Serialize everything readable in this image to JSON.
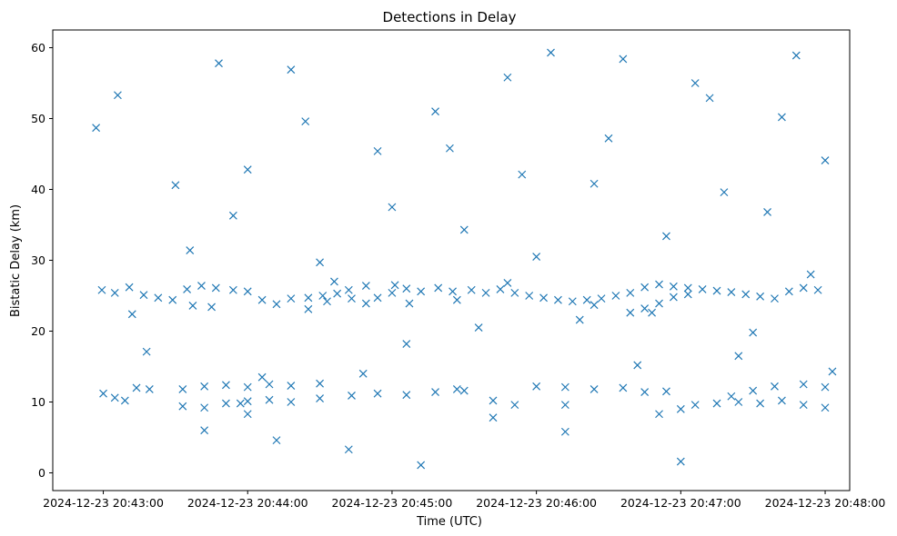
{
  "chart_data": {
    "type": "scatter",
    "title": "Detections in Delay",
    "xlabel": "Time (UTC)",
    "ylabel": "Bistatic Delay (km)",
    "xlim": [
      -0.35,
      5.17
    ],
    "ylim": [
      -2.5,
      62.5
    ],
    "x_unit": "minutes after 2024-12-23 20:43:00",
    "xticks": [
      0,
      1,
      2,
      3,
      4,
      5
    ],
    "xtick_labels": [
      "2024-12-23 20:43:00",
      "2024-12-23 20:44:00",
      "2024-12-23 20:45:00",
      "2024-12-23 20:46:00",
      "2024-12-23 20:47:00",
      "2024-12-23 20:48:00"
    ],
    "yticks": [
      0,
      10,
      20,
      30,
      40,
      50,
      60
    ],
    "ytick_labels": [
      "0",
      "10",
      "20",
      "30",
      "40",
      "50",
      "60"
    ],
    "marker": "x",
    "color": "#1f77b4",
    "grid": false,
    "series": [
      {
        "name": "Detections",
        "points": [
          [
            -0.01,
            25.8
          ],
          [
            0.08,
            25.4
          ],
          [
            0.18,
            26.2
          ],
          [
            0.28,
            25.1
          ],
          [
            0.38,
            24.7
          ],
          [
            0.48,
            24.4
          ],
          [
            0.58,
            25.9
          ],
          [
            0.68,
            26.4
          ],
          [
            0.78,
            26.1
          ],
          [
            0.9,
            25.8
          ],
          [
            1.0,
            25.6
          ],
          [
            1.1,
            24.4
          ],
          [
            1.2,
            23.8
          ],
          [
            1.3,
            24.6
          ],
          [
            1.42,
            24.7
          ],
          [
            1.52,
            25.0
          ],
          [
            1.62,
            25.3
          ],
          [
            1.72,
            24.6
          ],
          [
            1.82,
            23.9
          ],
          [
            1.9,
            24.7
          ],
          [
            2.0,
            25.4
          ],
          [
            2.1,
            26.0
          ],
          [
            2.2,
            25.6
          ],
          [
            2.32,
            26.1
          ],
          [
            2.42,
            25.6
          ],
          [
            2.55,
            25.8
          ],
          [
            2.65,
            25.4
          ],
          [
            2.75,
            25.9
          ],
          [
            2.85,
            25.4
          ],
          [
            2.95,
            25.0
          ],
          [
            3.05,
            24.7
          ],
          [
            3.15,
            24.4
          ],
          [
            3.25,
            24.2
          ],
          [
            3.35,
            24.4
          ],
          [
            3.45,
            24.6
          ],
          [
            3.55,
            25.0
          ],
          [
            3.65,
            25.4
          ],
          [
            3.75,
            26.2
          ],
          [
            3.85,
            26.6
          ],
          [
            3.95,
            26.3
          ],
          [
            4.05,
            26.1
          ],
          [
            4.15,
            25.9
          ],
          [
            4.25,
            25.7
          ],
          [
            4.35,
            25.5
          ],
          [
            4.45,
            25.2
          ],
          [
            4.55,
            24.9
          ],
          [
            4.65,
            24.6
          ],
          [
            4.75,
            25.6
          ],
          [
            4.85,
            26.1
          ],
          [
            4.95,
            25.8
          ],
          [
            1.42,
            23.1
          ],
          [
            1.55,
            24.2
          ],
          [
            1.7,
            25.8
          ],
          [
            1.82,
            26.4
          ],
          [
            2.02,
            26.5
          ],
          [
            3.65,
            22.6
          ],
          [
            3.75,
            23.2
          ],
          [
            3.85,
            23.9
          ],
          [
            3.95,
            24.8
          ],
          [
            4.05,
            25.2
          ],
          [
            2.12,
            23.9
          ],
          [
            2.45,
            24.4
          ],
          [
            2.8,
            26.8
          ],
          [
            3.4,
            23.7
          ],
          [
            0.62,
            23.6
          ],
          [
            0.75,
            23.4
          ],
          [
            0.55,
            9.4
          ],
          [
            0.7,
            9.2
          ],
          [
            0.85,
            9.8
          ],
          [
            1.0,
            10.1
          ],
          [
            1.15,
            10.3
          ],
          [
            1.3,
            10.0
          ],
          [
            1.5,
            10.5
          ],
          [
            1.72,
            10.9
          ],
          [
            1.9,
            11.2
          ],
          [
            2.1,
            11.0
          ],
          [
            2.3,
            11.4
          ],
          [
            2.5,
            11.6
          ],
          [
            2.7,
            10.2
          ],
          [
            2.85,
            9.6
          ],
          [
            3.0,
            12.2
          ],
          [
            3.2,
            12.1
          ],
          [
            3.4,
            11.8
          ],
          [
            3.6,
            12.0
          ],
          [
            3.75,
            11.4
          ],
          [
            3.85,
            8.3
          ],
          [
            4.0,
            9.0
          ],
          [
            4.1,
            9.6
          ],
          [
            4.25,
            9.8
          ],
          [
            4.4,
            10.0
          ],
          [
            4.55,
            9.8
          ],
          [
            4.7,
            10.2
          ],
          [
            4.85,
            9.6
          ],
          [
            5.0,
            9.2
          ],
          [
            3.2,
            9.6
          ],
          [
            2.45,
            11.8
          ],
          [
            0.55,
            11.8
          ],
          [
            0.7,
            12.2
          ],
          [
            0.85,
            12.4
          ],
          [
            1.0,
            12.1
          ],
          [
            1.15,
            12.5
          ],
          [
            1.3,
            12.3
          ],
          [
            4.35,
            10.8
          ],
          [
            4.5,
            11.6
          ],
          [
            4.65,
            12.2
          ],
          [
            4.85,
            12.5
          ],
          [
            5.0,
            12.1
          ],
          [
            0.0,
            11.2
          ],
          [
            0.08,
            10.6
          ],
          [
            0.15,
            10.2
          ],
          [
            0.23,
            12.0
          ],
          [
            0.32,
            11.8
          ],
          [
            3.9,
            11.5
          ],
          [
            1.0,
            8.3
          ],
          [
            1.5,
            12.6
          ],
          [
            0.95,
            9.8
          ],
          [
            -0.05,
            48.7
          ],
          [
            0.2,
            22.4
          ],
          [
            0.5,
            40.6
          ],
          [
            0.7,
            6.0
          ],
          [
            0.9,
            36.3
          ],
          [
            1.1,
            13.5
          ],
          [
            1.3,
            56.9
          ],
          [
            1.5,
            29.7
          ],
          [
            1.7,
            3.3
          ],
          [
            1.9,
            45.4
          ],
          [
            2.1,
            18.2
          ],
          [
            2.3,
            51.0
          ],
          [
            2.5,
            34.3
          ],
          [
            2.7,
            7.8
          ],
          [
            2.9,
            42.1
          ],
          [
            3.1,
            59.3
          ],
          [
            3.3,
            21.6
          ],
          [
            3.5,
            47.2
          ],
          [
            3.7,
            15.2
          ],
          [
            3.9,
            33.4
          ],
          [
            4.1,
            55.0
          ],
          [
            4.3,
            39.6
          ],
          [
            4.5,
            19.8
          ],
          [
            4.7,
            50.2
          ],
          [
            4.9,
            28.0
          ],
          [
            5.05,
            14.3
          ],
          [
            0.1,
            53.3
          ],
          [
            0.3,
            17.1
          ],
          [
            0.6,
            31.4
          ],
          [
            0.8,
            57.8
          ],
          [
            1.0,
            42.8
          ],
          [
            1.2,
            4.6
          ],
          [
            1.4,
            49.6
          ],
          [
            1.6,
            27.0
          ],
          [
            1.8,
            14.0
          ],
          [
            2.0,
            37.5
          ],
          [
            2.2,
            1.1
          ],
          [
            2.4,
            45.8
          ],
          [
            2.6,
            20.5
          ],
          [
            2.8,
            55.8
          ],
          [
            3.0,
            30.5
          ],
          [
            3.2,
            5.8
          ],
          [
            3.4,
            40.8
          ],
          [
            3.6,
            58.4
          ],
          [
            3.8,
            22.6
          ],
          [
            4.0,
            1.6
          ],
          [
            4.2,
            52.9
          ],
          [
            4.4,
            16.5
          ],
          [
            4.6,
            36.8
          ],
          [
            4.8,
            58.9
          ],
          [
            5.0,
            44.1
          ]
        ]
      }
    ]
  }
}
